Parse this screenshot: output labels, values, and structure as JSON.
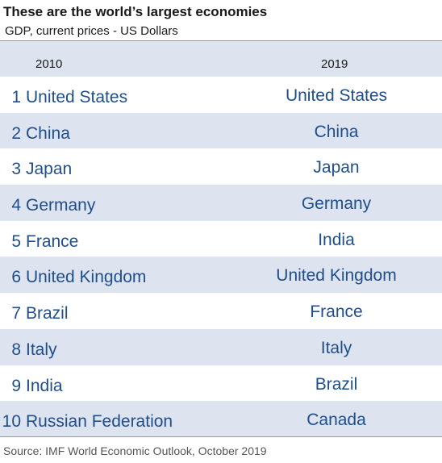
{
  "title": "These are the world’s largest economies",
  "subtitle": "GDP, current prices - US Dollars",
  "source": "Source: IMF World Economic Outlook, October 2019",
  "colors": {
    "text_blue": "#1f4e8c",
    "band": "#dde3ef",
    "divider": "#9a9a9a"
  },
  "chart_data": {
    "type": "table",
    "title": "These are the world’s largest economies",
    "subtitle": "GDP, current prices - US Dollars",
    "columns": [
      "2010",
      "2019"
    ],
    "rows": [
      {
        "rank": "1",
        "c2010": "United States",
        "c2019": "United States"
      },
      {
        "rank": "2",
        "c2010": "China",
        "c2019": "China"
      },
      {
        "rank": "3",
        "c2010": "Japan",
        "c2019": "Japan"
      },
      {
        "rank": "4",
        "c2010": "Germany",
        "c2019": "Germany"
      },
      {
        "rank": "5",
        "c2010": "France",
        "c2019": "India"
      },
      {
        "rank": "6",
        "c2010": "United Kingdom",
        "c2019": "United Kingdom"
      },
      {
        "rank": "7",
        "c2010": "Brazil",
        "c2019": "France"
      },
      {
        "rank": "8",
        "c2010": "Italy",
        "c2019": "Italy"
      },
      {
        "rank": "9",
        "c2010": "India",
        "c2019": "Brazil"
      },
      {
        "rank": "10",
        "c2010": "Russian Federation",
        "c2019": "Canada"
      }
    ]
  }
}
